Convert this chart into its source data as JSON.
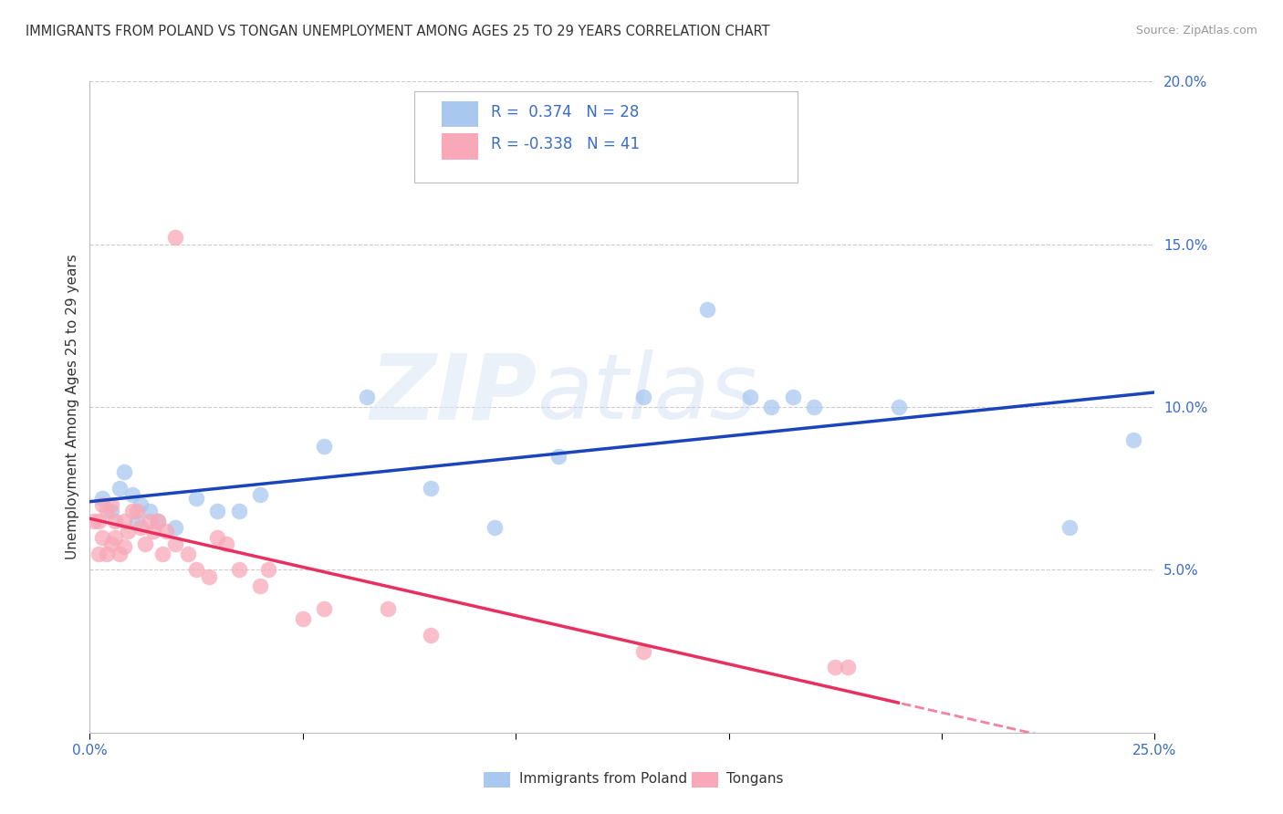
{
  "title": "IMMIGRANTS FROM POLAND VS TONGAN UNEMPLOYMENT AMONG AGES 25 TO 29 YEARS CORRELATION CHART",
  "source": "Source: ZipAtlas.com",
  "ylabel": "Unemployment Among Ages 25 to 29 years",
  "legend_label_1": "Immigrants from Poland",
  "legend_label_2": "Tongans",
  "r1": 0.374,
  "n1": 28,
  "r2": -0.338,
  "n2": 41,
  "xlim": [
    0.0,
    0.25
  ],
  "ylim": [
    0.0,
    0.2
  ],
  "color_blue": "#a8c8f0",
  "color_pink": "#f8a8b8",
  "line_blue": "#1a44bb",
  "line_pink": "#e83060",
  "background_color": "#ffffff",
  "blue_points_x": [
    0.003,
    0.005,
    0.007,
    0.008,
    0.01,
    0.011,
    0.012,
    0.014,
    0.016,
    0.02,
    0.025,
    0.03,
    0.035,
    0.04,
    0.055,
    0.065,
    0.08,
    0.095,
    0.11,
    0.13,
    0.145,
    0.155,
    0.16,
    0.165,
    0.17,
    0.19,
    0.23,
    0.245
  ],
  "blue_points_y": [
    0.072,
    0.068,
    0.075,
    0.08,
    0.073,
    0.065,
    0.07,
    0.068,
    0.065,
    0.063,
    0.072,
    0.068,
    0.068,
    0.073,
    0.088,
    0.103,
    0.075,
    0.063,
    0.085,
    0.103,
    0.13,
    0.103,
    0.1,
    0.103,
    0.1,
    0.1,
    0.063,
    0.09
  ],
  "pink_points_x": [
    0.001,
    0.002,
    0.002,
    0.003,
    0.003,
    0.004,
    0.004,
    0.005,
    0.005,
    0.006,
    0.006,
    0.007,
    0.008,
    0.008,
    0.009,
    0.01,
    0.011,
    0.012,
    0.013,
    0.014,
    0.015,
    0.016,
    0.017,
    0.018,
    0.02,
    0.023,
    0.025,
    0.028,
    0.03,
    0.032,
    0.035,
    0.04,
    0.042,
    0.05,
    0.055,
    0.07,
    0.08,
    0.13,
    0.175,
    0.178,
    0.02
  ],
  "pink_points_y": [
    0.065,
    0.055,
    0.065,
    0.06,
    0.07,
    0.055,
    0.068,
    0.058,
    0.07,
    0.06,
    0.065,
    0.055,
    0.057,
    0.065,
    0.062,
    0.068,
    0.068,
    0.063,
    0.058,
    0.065,
    0.062,
    0.065,
    0.055,
    0.062,
    0.058,
    0.055,
    0.05,
    0.048,
    0.06,
    0.058,
    0.05,
    0.045,
    0.05,
    0.035,
    0.038,
    0.038,
    0.03,
    0.025,
    0.02,
    0.02,
    0.152
  ]
}
